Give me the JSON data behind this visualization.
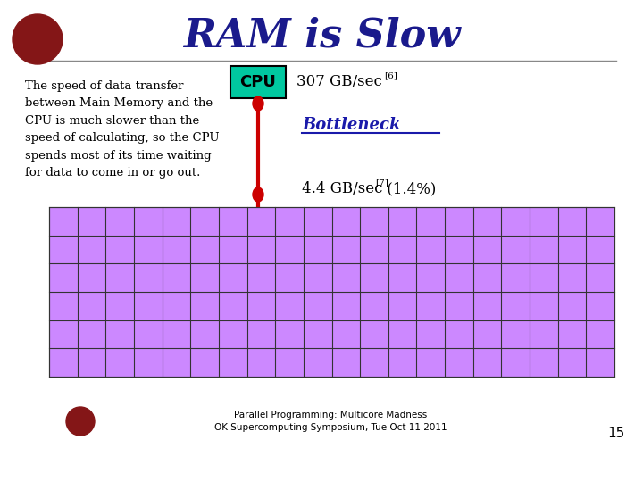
{
  "title": "RAM is Slow",
  "title_color": "#1a1a8c",
  "title_fontsize": 32,
  "background_color": "#ffffff",
  "body_text": "The speed of data transfer\nbetween Main Memory and the\nCPU is much slower than the\nspeed of calculating, so the CPU\nspends most of its time waiting\nfor data to come in or go out.",
  "cpu_label": "CPU",
  "cpu_box_color": "#00c8a0",
  "cpu_box_text_color": "#000000",
  "speed_right": "307 GB/sec",
  "speed_right_sup": "[6]",
  "bottleneck_label": "Bottleneck",
  "bottleneck_color": "#1a1aaa",
  "speed_bottom": "4.4 GB/sec",
  "speed_bottom_sup": "[7]",
  "speed_bottom_extra": " (1.4%)",
  "connector_color": "#cc0000",
  "grid_fill": "#cc88ff",
  "grid_line_color": "#333333",
  "footer_text": "Parallel Programming: Multicore Madness\nOK Supercomputing Symposium, Tue Oct 11 2011",
  "footer_page": "15",
  "grid_cols": 20,
  "grid_rows": 6
}
